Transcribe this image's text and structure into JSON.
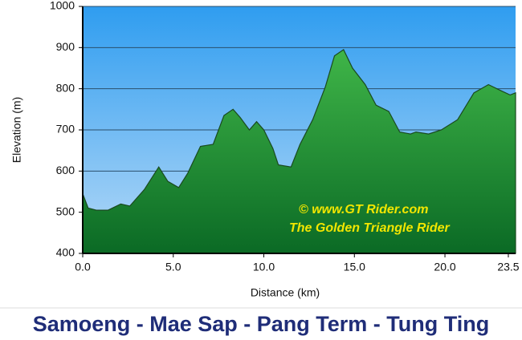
{
  "chart_data": {
    "type": "area",
    "title": "Samoeng - Mae Sap - Pang Term - Tung Ting",
    "xlabel": "Distance   (km)",
    "ylabel": "Elevation (m)",
    "annotations": [
      "©  www.GT Rider.com",
      "The Golden Triangle Rider"
    ],
    "x": [
      0,
      0.3,
      0.75,
      1.4,
      2.1,
      2.6,
      3.4,
      4.2,
      4.7,
      5.3,
      5.8,
      6.5,
      7.2,
      7.8,
      8.3,
      8.7,
      9.2,
      9.6,
      10.0,
      10.5,
      10.8,
      11.5,
      12.0,
      12.7,
      13.4,
      13.9,
      14.4,
      14.9,
      15.6,
      16.2,
      16.9,
      17.5,
      18.1,
      18.4,
      19.1,
      19.8,
      20.7,
      21.6,
      22.4,
      23.1,
      23.6,
      23.9
    ],
    "values": [
      545,
      510,
      505,
      505,
      520,
      515,
      555,
      610,
      575,
      560,
      595,
      660,
      665,
      735,
      750,
      730,
      700,
      720,
      700,
      655,
      615,
      610,
      665,
      725,
      805,
      880,
      895,
      850,
      810,
      760,
      745,
      695,
      690,
      695,
      690,
      700,
      725,
      790,
      810,
      795,
      785,
      790
    ],
    "color": "#2f9b3b",
    "xlim": [
      0,
      23.9
    ],
    "ylim": [
      400,
      1000
    ],
    "xticks": [
      {
        "value": 0,
        "label": "0.0"
      },
      {
        "value": 5,
        "label": "5.0"
      },
      {
        "value": 10,
        "label": "10.0"
      },
      {
        "value": 15,
        "label": "15.0"
      },
      {
        "value": 20,
        "label": "20.0"
      },
      23.5
    ],
    "yticks": [
      400,
      500,
      600,
      700,
      800,
      900,
      1000
    ],
    "grid": true
  }
}
